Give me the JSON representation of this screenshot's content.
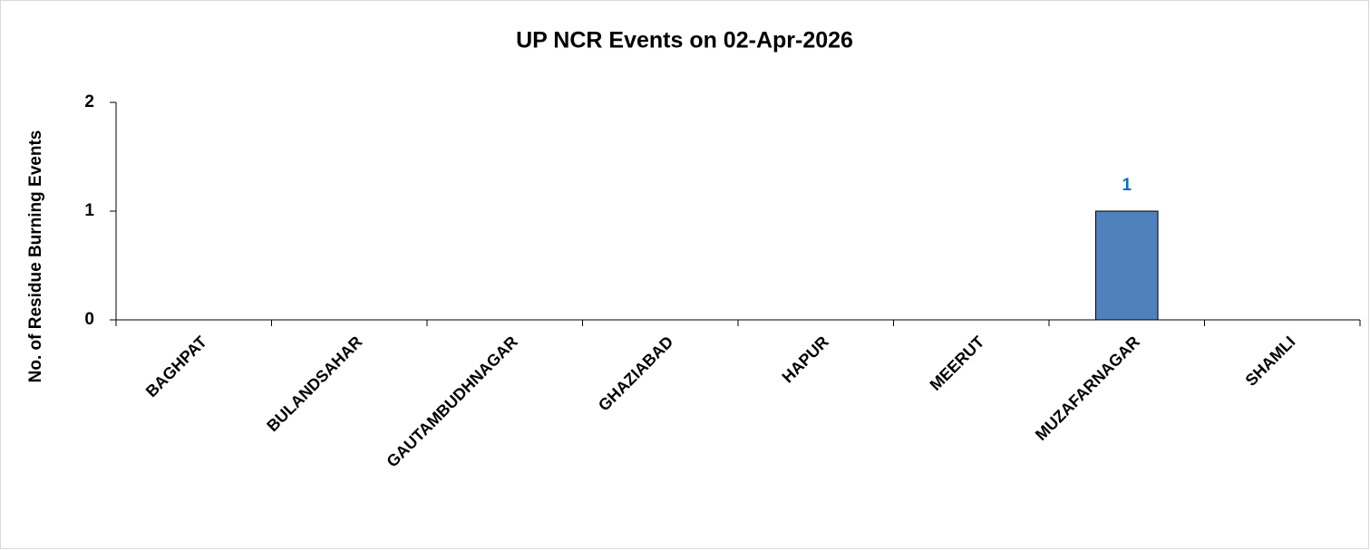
{
  "chart_data": {
    "type": "bar",
    "title": "UP NCR Events on 02-Apr-2026",
    "y_label": "No. of Residue Burning Events",
    "categories": [
      "BAGHPAT",
      "BULANDSAHAR",
      "GAUTAMBUDHNAGAR",
      "GHAZIABAD",
      "HAPUR",
      "MEERUT",
      "MUZAFARNAGAR",
      "SHAMLI"
    ],
    "values": [
      0,
      0,
      0,
      0,
      0,
      0,
      1,
      0
    ],
    "value_labels": [
      null,
      null,
      null,
      null,
      null,
      null,
      "1",
      null
    ],
    "color": "#4f81bd",
    "label_color": "#0070c0",
    "ylim": [
      0,
      2
    ],
    "yticks": [
      0,
      1,
      2
    ],
    "grid": false
  }
}
